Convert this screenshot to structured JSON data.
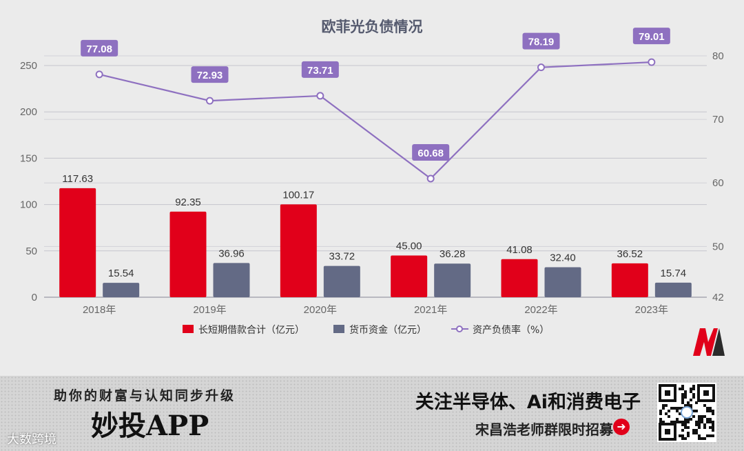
{
  "chart_data": {
    "type": "bar",
    "title": "欧菲光负债情况",
    "categories": [
      "2018年",
      "2019年",
      "2020年",
      "2021年",
      "2022年",
      "2023年"
    ],
    "series": [
      {
        "name": "长短期借款合计（亿元）",
        "kind": "bar",
        "axis": "left",
        "color": "#e1001a",
        "values": [
          117.63,
          92.35,
          100.17,
          45.0,
          41.08,
          36.52
        ]
      },
      {
        "name": "货币资金（亿元）",
        "kind": "bar",
        "axis": "left",
        "color": "#636a85",
        "values": [
          15.54,
          36.96,
          33.72,
          36.28,
          32.4,
          15.74
        ]
      },
      {
        "name": "资产负债率（%）",
        "kind": "line",
        "axis": "right",
        "color": "#8e70c0",
        "values": [
          77.08,
          72.93,
          73.71,
          60.68,
          78.19,
          79.01
        ]
      }
    ],
    "y_left": {
      "range": [
        0,
        250
      ],
      "ticks": [
        0,
        50,
        100,
        150,
        200,
        250
      ]
    },
    "y_right": {
      "range": [
        42,
        80
      ],
      "ticks": [
        42,
        50,
        60,
        70,
        80
      ]
    },
    "grid": true,
    "legend": "bottom"
  },
  "banner": {
    "slogan": "助你的财富与认知同步升级",
    "app_name": "妙投APP",
    "watermark": "大数跨境",
    "headline": "关注半导体、Ai和消费电子",
    "subline": "宋昌浩老师群限时招募",
    "arrow_icon": "arrow-right-circle-icon"
  }
}
